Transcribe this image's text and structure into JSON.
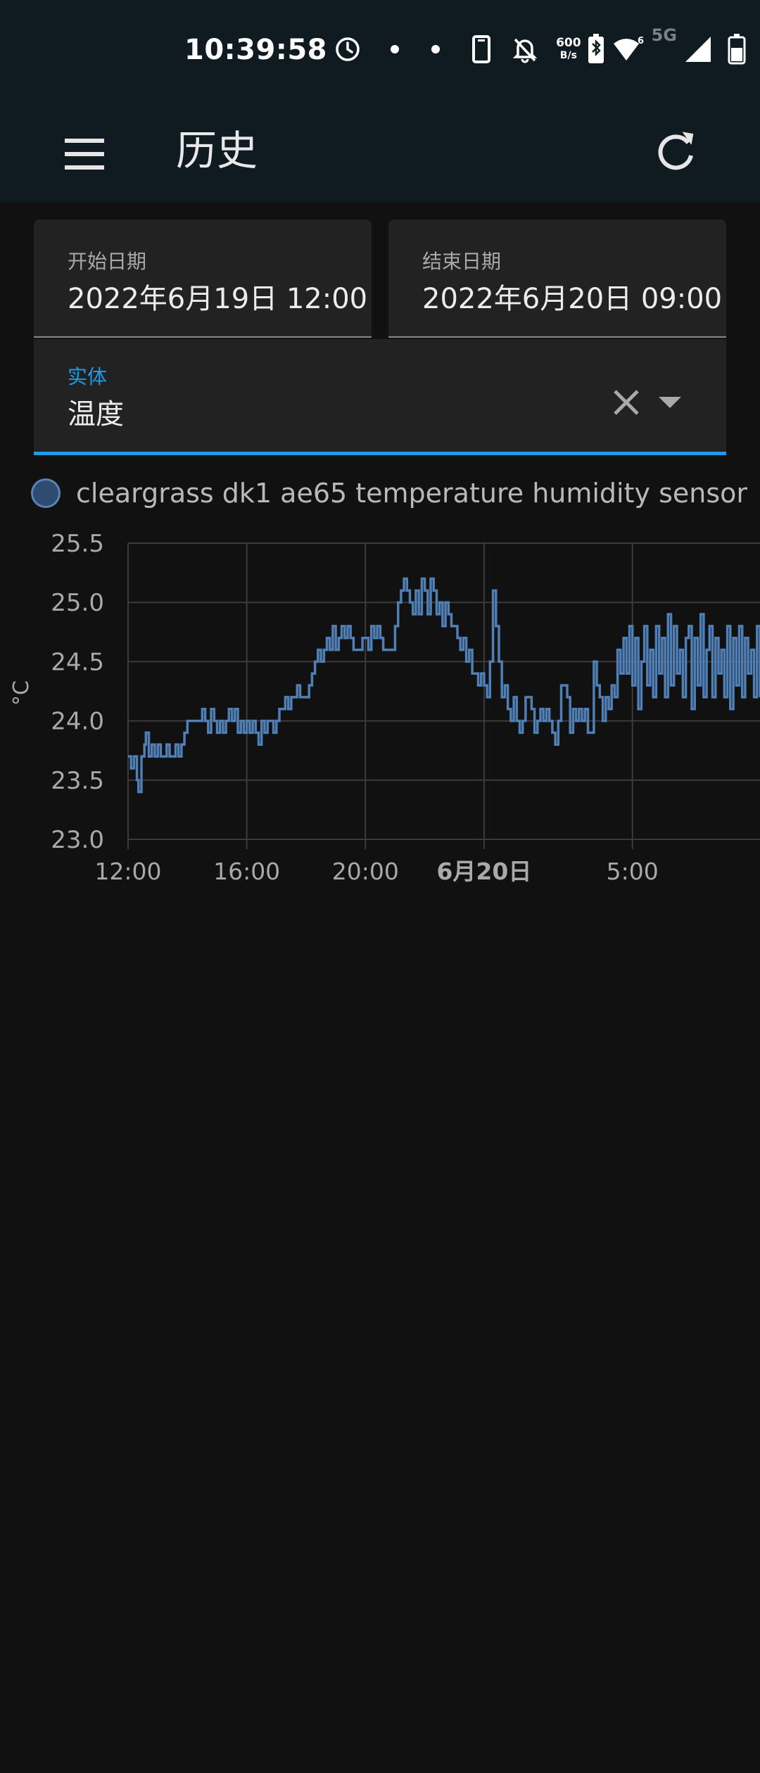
{
  "status_bar": {
    "time": "10:39:58",
    "net_speed_top": "600",
    "net_speed_bottom": "B/s",
    "signal_label": "5G",
    "icons": [
      "alarm-icon",
      "dot-icon",
      "dot-icon",
      "phone-icon",
      "bell-off-icon",
      "net-speed-icon",
      "bluetooth-battery-icon",
      "wifi-icon",
      "signal-icon",
      "battery-icon"
    ]
  },
  "app_bar": {
    "title": "历史",
    "menu_icon": "menu-icon",
    "refresh_icon": "refresh-icon"
  },
  "filters": {
    "start_date": {
      "label": "开始日期",
      "value": "2022年6月19日 12:00"
    },
    "end_date": {
      "label": "结束日期",
      "value": "2022年6月20日 09:00"
    },
    "entity": {
      "label": "实体",
      "value": "温度"
    }
  },
  "colors": {
    "accent": "#1e9ce8",
    "series": "#4f7fb5",
    "background": "#111111",
    "appbar": "#101a21"
  },
  "chart_data": {
    "type": "line",
    "step": true,
    "ylabel": "°C",
    "ylim": [
      23.0,
      25.5
    ],
    "yticks": [
      23.0,
      23.5,
      24.0,
      24.5,
      25.0,
      25.5
    ],
    "ytick_labels": [
      "23.0",
      "23.5",
      "24.0",
      "24.5",
      "25.0",
      "25.5"
    ],
    "xlim_hours": [
      12.0,
      33.3
    ],
    "xticks_hours": [
      12,
      16,
      20,
      24,
      29
    ],
    "xtick_labels": [
      "12:00",
      "16:00",
      "20:00",
      "6月20日",
      "5:00"
    ],
    "xtick_bold": [
      false,
      false,
      false,
      true,
      false
    ],
    "grid": true,
    "legend_position": "top-left",
    "series": [
      {
        "name": "cleargrass dk1 ae65 temperature humidity sensor",
        "color": "#4f7fb5",
        "points": [
          [
            12.0,
            23.7
          ],
          [
            12.1,
            23.6
          ],
          [
            12.2,
            23.7
          ],
          [
            12.3,
            23.5
          ],
          [
            12.35,
            23.4
          ],
          [
            12.45,
            23.7
          ],
          [
            12.55,
            23.8
          ],
          [
            12.6,
            23.9
          ],
          [
            12.7,
            23.7
          ],
          [
            12.8,
            23.8
          ],
          [
            12.9,
            23.7
          ],
          [
            13.0,
            23.8
          ],
          [
            13.1,
            23.7
          ],
          [
            13.2,
            23.7
          ],
          [
            13.3,
            23.8
          ],
          [
            13.4,
            23.7
          ],
          [
            13.5,
            23.7
          ],
          [
            13.6,
            23.8
          ],
          [
            13.7,
            23.7
          ],
          [
            13.8,
            23.8
          ],
          [
            13.9,
            23.9
          ],
          [
            14.0,
            24.0
          ],
          [
            14.2,
            24.0
          ],
          [
            14.4,
            24.0
          ],
          [
            14.5,
            24.1
          ],
          [
            14.6,
            24.0
          ],
          [
            14.7,
            23.9
          ],
          [
            14.8,
            24.1
          ],
          [
            14.9,
            24.0
          ],
          [
            15.0,
            23.9
          ],
          [
            15.1,
            24.0
          ],
          [
            15.2,
            23.9
          ],
          [
            15.3,
            24.0
          ],
          [
            15.4,
            24.1
          ],
          [
            15.5,
            24.0
          ],
          [
            15.6,
            24.1
          ],
          [
            15.7,
            23.9
          ],
          [
            15.8,
            24.0
          ],
          [
            15.9,
            23.9
          ],
          [
            16.0,
            24.0
          ],
          [
            16.1,
            23.9
          ],
          [
            16.2,
            24.0
          ],
          [
            16.3,
            23.9
          ],
          [
            16.4,
            23.8
          ],
          [
            16.5,
            24.0
          ],
          [
            16.6,
            23.9
          ],
          [
            16.7,
            24.0
          ],
          [
            16.8,
            24.0
          ],
          [
            16.9,
            23.9
          ],
          [
            17.0,
            24.0
          ],
          [
            17.1,
            24.1
          ],
          [
            17.2,
            24.1
          ],
          [
            17.3,
            24.2
          ],
          [
            17.4,
            24.1
          ],
          [
            17.5,
            24.2
          ],
          [
            17.6,
            24.2
          ],
          [
            17.7,
            24.3
          ],
          [
            17.8,
            24.2
          ],
          [
            17.9,
            24.2
          ],
          [
            18.0,
            24.2
          ],
          [
            18.1,
            24.3
          ],
          [
            18.2,
            24.4
          ],
          [
            18.3,
            24.5
          ],
          [
            18.4,
            24.6
          ],
          [
            18.5,
            24.5
          ],
          [
            18.6,
            24.6
          ],
          [
            18.7,
            24.7
          ],
          [
            18.8,
            24.6
          ],
          [
            18.9,
            24.8
          ],
          [
            19.0,
            24.6
          ],
          [
            19.1,
            24.7
          ],
          [
            19.2,
            24.8
          ],
          [
            19.3,
            24.7
          ],
          [
            19.4,
            24.8
          ],
          [
            19.5,
            24.7
          ],
          [
            19.6,
            24.6
          ],
          [
            19.7,
            24.6
          ],
          [
            19.8,
            24.6
          ],
          [
            19.9,
            24.7
          ],
          [
            20.0,
            24.7
          ],
          [
            20.1,
            24.6
          ],
          [
            20.2,
            24.8
          ],
          [
            20.3,
            24.7
          ],
          [
            20.4,
            24.8
          ],
          [
            20.5,
            24.7
          ],
          [
            20.6,
            24.6
          ],
          [
            20.7,
            24.6
          ],
          [
            20.8,
            24.6
          ],
          [
            20.9,
            24.6
          ],
          [
            21.0,
            24.8
          ],
          [
            21.1,
            25.0
          ],
          [
            21.2,
            25.1
          ],
          [
            21.3,
            25.2
          ],
          [
            21.4,
            25.1
          ],
          [
            21.5,
            25.0
          ],
          [
            21.6,
            24.9
          ],
          [
            21.7,
            25.1
          ],
          [
            21.8,
            24.9
          ],
          [
            21.9,
            25.2
          ],
          [
            22.0,
            25.1
          ],
          [
            22.1,
            24.9
          ],
          [
            22.2,
            25.2
          ],
          [
            22.3,
            25.1
          ],
          [
            22.4,
            24.9
          ],
          [
            22.5,
            25.0
          ],
          [
            22.6,
            24.8
          ],
          [
            22.7,
            25.0
          ],
          [
            22.8,
            24.9
          ],
          [
            22.9,
            24.8
          ],
          [
            23.0,
            24.8
          ],
          [
            23.1,
            24.7
          ],
          [
            23.2,
            24.6
          ],
          [
            23.3,
            24.7
          ],
          [
            23.4,
            24.5
          ],
          [
            23.5,
            24.6
          ],
          [
            23.6,
            24.4
          ],
          [
            23.7,
            24.4
          ],
          [
            23.8,
            24.3
          ],
          [
            23.9,
            24.4
          ],
          [
            24.0,
            24.3
          ],
          [
            24.1,
            24.2
          ],
          [
            24.2,
            24.5
          ],
          [
            24.3,
            25.1
          ],
          [
            24.4,
            24.8
          ],
          [
            24.5,
            24.5
          ],
          [
            24.6,
            24.2
          ],
          [
            24.7,
            24.3
          ],
          [
            24.8,
            24.1
          ],
          [
            24.9,
            24.0
          ],
          [
            25.0,
            24.2
          ],
          [
            25.1,
            24.0
          ],
          [
            25.2,
            23.9
          ],
          [
            25.3,
            24.0
          ],
          [
            25.4,
            24.2
          ],
          [
            25.5,
            24.2
          ],
          [
            25.6,
            24.1
          ],
          [
            25.7,
            23.9
          ],
          [
            25.8,
            24.0
          ],
          [
            25.9,
            24.1
          ],
          [
            26.0,
            24.0
          ],
          [
            26.1,
            24.1
          ],
          [
            26.2,
            24.0
          ],
          [
            26.3,
            23.9
          ],
          [
            26.4,
            23.8
          ],
          [
            26.5,
            24.0
          ],
          [
            26.6,
            24.3
          ],
          [
            26.7,
            24.3
          ],
          [
            26.8,
            24.2
          ],
          [
            26.9,
            23.9
          ],
          [
            27.0,
            24.1
          ],
          [
            27.1,
            24.0
          ],
          [
            27.2,
            24.1
          ],
          [
            27.3,
            24.0
          ],
          [
            27.4,
            24.1
          ],
          [
            27.5,
            23.9
          ],
          [
            27.6,
            23.9
          ],
          [
            27.7,
            24.5
          ],
          [
            27.8,
            24.3
          ],
          [
            27.9,
            24.2
          ],
          [
            28.0,
            24.0
          ],
          [
            28.1,
            24.2
          ],
          [
            28.2,
            24.1
          ],
          [
            28.3,
            24.3
          ],
          [
            28.4,
            24.2
          ],
          [
            28.5,
            24.6
          ],
          [
            28.6,
            24.4
          ],
          [
            28.7,
            24.7
          ],
          [
            28.8,
            24.4
          ],
          [
            28.9,
            24.8
          ],
          [
            29.0,
            24.3
          ],
          [
            29.1,
            24.7
          ],
          [
            29.2,
            24.1
          ],
          [
            29.3,
            24.5
          ],
          [
            29.4,
            24.8
          ],
          [
            29.5,
            24.3
          ],
          [
            29.6,
            24.6
          ],
          [
            29.7,
            24.2
          ],
          [
            29.8,
            24.8
          ],
          [
            29.9,
            24.4
          ],
          [
            30.0,
            24.7
          ],
          [
            30.1,
            24.2
          ],
          [
            30.2,
            24.9
          ],
          [
            30.3,
            24.3
          ],
          [
            30.4,
            24.8
          ],
          [
            30.5,
            24.4
          ],
          [
            30.6,
            24.6
          ],
          [
            30.7,
            24.2
          ],
          [
            30.8,
            24.7
          ],
          [
            30.9,
            24.8
          ],
          [
            31.0,
            24.1
          ],
          [
            31.1,
            24.7
          ],
          [
            31.2,
            24.3
          ],
          [
            31.3,
            24.9
          ],
          [
            31.4,
            24.2
          ],
          [
            31.5,
            24.6
          ],
          [
            31.6,
            24.8
          ],
          [
            31.7,
            24.2
          ],
          [
            31.8,
            24.7
          ],
          [
            31.9,
            24.4
          ],
          [
            32.0,
            24.6
          ],
          [
            32.1,
            24.2
          ],
          [
            32.2,
            24.8
          ],
          [
            32.3,
            24.1
          ],
          [
            32.4,
            24.7
          ],
          [
            32.5,
            24.3
          ],
          [
            32.6,
            24.8
          ],
          [
            32.7,
            24.2
          ],
          [
            32.8,
            24.7
          ],
          [
            32.9,
            24.4
          ],
          [
            33.0,
            24.6
          ],
          [
            33.1,
            24.2
          ],
          [
            33.2,
            24.8
          ],
          [
            33.3,
            24.2
          ]
        ]
      }
    ]
  }
}
